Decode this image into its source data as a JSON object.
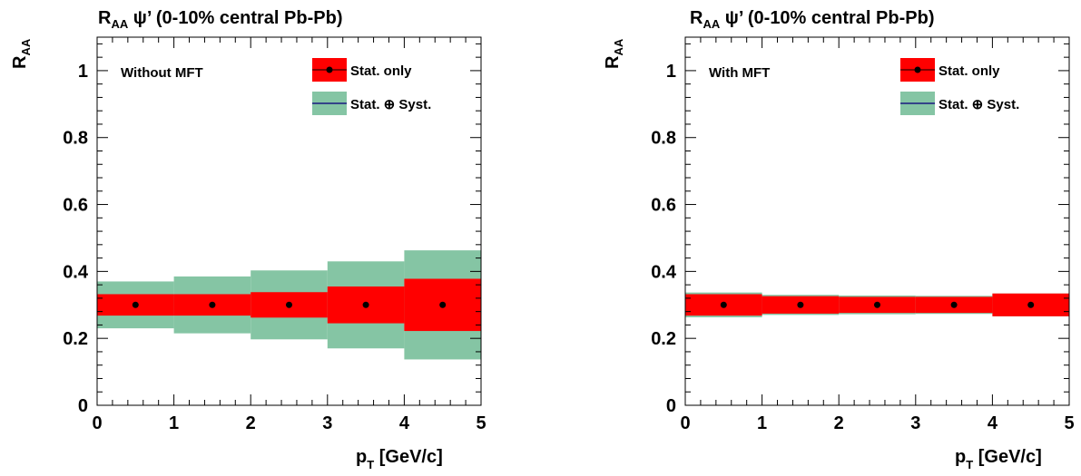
{
  "colors": {
    "stat": "#ff0000",
    "syst": "#85c5a4",
    "marker": "#000000",
    "legend_line": "#1a1a80"
  },
  "chart_data": [
    {
      "type": "bar",
      "title_main": "R",
      "title_sub": "AA",
      "title_rest": " ψ’  (0-10% central Pb-Pb)",
      "ylabel_main": "R",
      "ylabel_sub": "AA",
      "xlabel_main": "p",
      "xlabel_sub": "T",
      "xlabel_rest": "  [GeV/c]",
      "annotation": "Without MFT",
      "legend": [
        "Stat. only",
        "Stat. ⊕ Syst."
      ],
      "xlim": [
        0,
        5
      ],
      "ylim": [
        0,
        1.1
      ],
      "x_ticks": [
        "0",
        "1",
        "2",
        "3",
        "4",
        "5"
      ],
      "y_ticks": [
        "0",
        "0.2",
        "0.4",
        "0.6",
        "0.8",
        "1"
      ],
      "x": [
        0.5,
        1.5,
        2.5,
        3.5,
        4.5
      ],
      "y": [
        0.3,
        0.3,
        0.3,
        0.3,
        0.3
      ],
      "stat_err": [
        0.032,
        0.032,
        0.038,
        0.055,
        0.078
      ],
      "total_err": [
        0.07,
        0.085,
        0.103,
        0.13,
        0.163
      ],
      "grid": false
    },
    {
      "type": "bar",
      "title_main": "R",
      "title_sub": "AA",
      "title_rest": " ψ’  (0-10% central Pb-Pb)",
      "ylabel_main": "R",
      "ylabel_sub": "AA",
      "xlabel_main": "p",
      "xlabel_sub": "T",
      "xlabel_rest": "  [GeV/c]",
      "annotation": "With MFT",
      "legend": [
        "Stat. only",
        "Stat. ⊕ Syst."
      ],
      "xlim": [
        0,
        5
      ],
      "ylim": [
        0,
        1.1
      ],
      "x_ticks": [
        "0",
        "1",
        "2",
        "3",
        "4",
        "5"
      ],
      "y_ticks": [
        "0",
        "0.2",
        "0.4",
        "0.6",
        "0.8",
        "1"
      ],
      "x": [
        0.5,
        1.5,
        2.5,
        3.5,
        4.5
      ],
      "y": [
        0.3,
        0.3,
        0.3,
        0.3,
        0.3
      ],
      "stat_err": [
        0.032,
        0.026,
        0.024,
        0.024,
        0.034
      ],
      "total_err": [
        0.037,
        0.03,
        0.028,
        0.027,
        0.034
      ],
      "grid": false
    }
  ]
}
